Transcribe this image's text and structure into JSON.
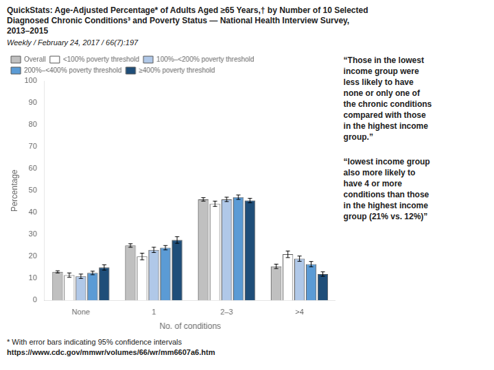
{
  "chart_data": {
    "type": "bar",
    "title": [
      "QuickStats: Age-Adjusted Percentage* of Adults Aged ≥65 Years,† by Number of 10 Selected",
      "Diagnosed Chronic Conditions³ and Poverty Status — National Health Interview Survey,",
      "2013–2015"
    ],
    "subtitle": "Weekly / February 24, 2017 / 66(7):197",
    "footnote": "* With error bars indicating 95% confidence intervals",
    "url": "https://www.cdc.gov/mmwr/volumes/66/wr/mm6607a6.htm",
    "annotations": [
      [
        "“Those in the lowest",
        "income group were",
        "less likely to have",
        "none or only one of",
        "the chronic conditions",
        "compared with those",
        "in the highest income",
        "group.”"
      ],
      [
        "“lowest income group",
        "also more likely to",
        "have 4 or more",
        "conditions than those",
        "in the highest income",
        "group (21% vs. 12%)”"
      ]
    ],
    "xlabel": "No. of conditions",
    "ylabel": "Percentage",
    "categories": [
      "None",
      "1",
      "2–3",
      ">4"
    ],
    "series": [
      {
        "name": "Overall",
        "color": "#c0c0c0",
        "values": [
          13.0,
          25.0,
          46.0,
          15.5
        ],
        "errors": [
          0.5,
          0.8,
          0.8,
          1.0
        ]
      },
      {
        "name": "<100% poverty threshold",
        "color": "#ffffff",
        "values": [
          11.5,
          20.0,
          44.0,
          21.0
        ],
        "errors": [
          1.0,
          1.5,
          1.2,
          1.5
        ]
      },
      {
        "name": "100%–<200% poverty threshold",
        "color": "#b0c8e8",
        "values": [
          11.0,
          23.0,
          46.0,
          19.0
        ],
        "errors": [
          1.0,
          1.2,
          1.0,
          1.2
        ]
      },
      {
        "name": "200%–<400% poverty threshold",
        "color": "#5b9bd5",
        "values": [
          12.5,
          24.0,
          47.0,
          16.5
        ],
        "errors": [
          0.8,
          1.0,
          1.0,
          1.2
        ]
      },
      {
        "name": "≥400% poverty threshold",
        "color": "#1f4e79",
        "values": [
          15.0,
          27.5,
          45.5,
          12.0
        ],
        "errors": [
          1.2,
          1.5,
          1.0,
          1.0
        ]
      }
    ],
    "ylim": [
      0,
      100
    ],
    "yticks": [
      0,
      10,
      20,
      30,
      40,
      50,
      60,
      70,
      80,
      90,
      100
    ],
    "grid": false,
    "legend": "upper left"
  }
}
